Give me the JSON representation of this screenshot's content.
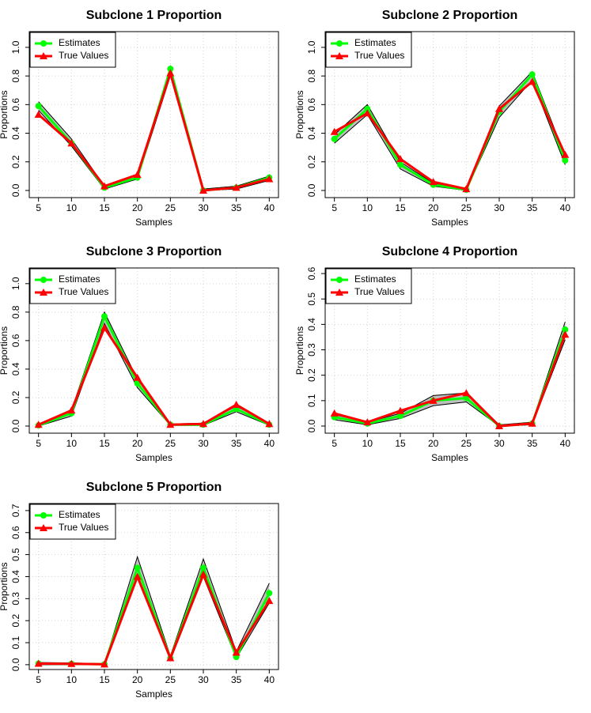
{
  "chart_data": [
    {
      "type": "line",
      "title": "Subclone 1 Proportion",
      "xlabel": "Samples",
      "ylabel": "Proportions",
      "x": [
        5,
        10,
        15,
        20,
        25,
        30,
        35,
        40
      ],
      "xlim": [
        3.6,
        41.4
      ],
      "xticks": [
        5,
        10,
        15,
        20,
        25,
        30,
        35,
        40
      ],
      "ylim": [
        -0.05,
        1.11
      ],
      "yticks": [
        {
          "value": 0,
          "label": "0.0"
        },
        0.2,
        0.4,
        0.6,
        0.8,
        {
          "value": 1,
          "label": "1.0"
        }
      ],
      "grid": true,
      "legend": "topleft",
      "band": {
        "color": "#bebebe",
        "lower": [
          0.56,
          0.31,
          0.01,
          0.08,
          0.8,
          0,
          0.01,
          0.07
        ],
        "upper": [
          0.62,
          0.36,
          0.03,
          0.11,
          0.86,
          0.01,
          0.03,
          0.1
        ]
      },
      "series": [
        {
          "name": "Estimates",
          "color": "#00ff00",
          "marker": "circle",
          "values": [
            0.59,
            0.33,
            0.02,
            0.09,
            0.85,
            0,
            0.02,
            0.09
          ]
        },
        {
          "name": "True Values",
          "color": "#ff0000",
          "marker": "triangle",
          "values": [
            0.53,
            0.33,
            0.03,
            0.11,
            0.82,
            0,
            0.02,
            0.08
          ]
        }
      ]
    },
    {
      "type": "line",
      "title": "Subclone 2 Proportion",
      "xlabel": "Samples",
      "ylabel": "Proportions",
      "x": [
        5,
        10,
        15,
        20,
        25,
        30,
        35,
        40
      ],
      "xlim": [
        3.6,
        41.4
      ],
      "xticks": [
        5,
        10,
        15,
        20,
        25,
        30,
        35,
        40
      ],
      "ylim": [
        -0.05,
        1.11
      ],
      "yticks": [
        {
          "value": 0,
          "label": "0.0"
        },
        0.2,
        0.4,
        0.6,
        0.8,
        {
          "value": 1,
          "label": "1.0"
        }
      ],
      "grid": true,
      "legend": "topleft",
      "band": {
        "color": "#bebebe",
        "lower": [
          0.33,
          0.53,
          0.15,
          0.03,
          0,
          0.51,
          0.77,
          0.18
        ],
        "upper": [
          0.39,
          0.6,
          0.2,
          0.05,
          0.01,
          0.59,
          0.83,
          0.24
        ]
      },
      "series": [
        {
          "name": "Estimates",
          "color": "#00ff00",
          "marker": "circle",
          "values": [
            0.36,
            0.57,
            0.18,
            0.04,
            0.005,
            0.55,
            0.81,
            0.21
          ]
        },
        {
          "name": "True Values",
          "color": "#ff0000",
          "marker": "triangle",
          "values": [
            0.41,
            0.54,
            0.22,
            0.06,
            0.01,
            0.57,
            0.76,
            0.25
          ]
        }
      ]
    },
    {
      "type": "line",
      "title": "Subclone 3 Proportion",
      "xlabel": "Samples",
      "ylabel": "Proportions",
      "x": [
        5,
        10,
        15,
        20,
        25,
        30,
        35,
        40
      ],
      "xlim": [
        3.6,
        41.4
      ],
      "xticks": [
        5,
        10,
        15,
        20,
        25,
        30,
        35,
        40
      ],
      "ylim": [
        -0.05,
        1.11
      ],
      "yticks": [
        {
          "value": 0,
          "label": "0.0"
        },
        0.2,
        0.4,
        0.6,
        0.8,
        {
          "value": 1,
          "label": "1.0"
        }
      ],
      "grid": true,
      "legend": "topleft",
      "band": {
        "color": "#bebebe",
        "lower": [
          0,
          0.07,
          0.72,
          0.27,
          0.005,
          0.005,
          0.1,
          0.005
        ],
        "upper": [
          0.01,
          0.11,
          0.8,
          0.33,
          0.015,
          0.02,
          0.14,
          0.02
        ]
      },
      "series": [
        {
          "name": "Estimates",
          "color": "#00ff00",
          "marker": "circle",
          "values": [
            0.005,
            0.09,
            0.77,
            0.3,
            0.01,
            0.01,
            0.12,
            0.01
          ]
        },
        {
          "name": "True Values",
          "color": "#ff0000",
          "marker": "triangle",
          "values": [
            0.01,
            0.11,
            0.69,
            0.34,
            0.01,
            0.015,
            0.15,
            0.015
          ]
        }
      ]
    },
    {
      "type": "line",
      "title": "Subclone 4 Proportion",
      "xlabel": "Samples",
      "ylabel": "Proportions",
      "x": [
        5,
        10,
        15,
        20,
        25,
        30,
        35,
        40
      ],
      "xlim": [
        3.6,
        41.4
      ],
      "xticks": [
        5,
        10,
        15,
        20,
        25,
        30,
        35,
        40
      ],
      "ylim": [
        -0.028,
        0.622
      ],
      "yticks": [
        {
          "value": 0,
          "label": "0.0"
        },
        0.1,
        0.2,
        0.3,
        0.4,
        0.5,
        0.6
      ],
      "grid": true,
      "legend": "topleft",
      "band": {
        "color": "#bebebe",
        "lower": [
          0.025,
          0.005,
          0.03,
          0.08,
          0.095,
          0,
          0.005,
          0.34
        ],
        "upper": [
          0.045,
          0.015,
          0.05,
          0.12,
          0.13,
          0.005,
          0.015,
          0.41
        ]
      },
      "series": [
        {
          "name": "Estimates",
          "color": "#00ff00",
          "marker": "circle",
          "values": [
            0.035,
            0.01,
            0.04,
            0.1,
            0.11,
            0,
            0.01,
            0.38
          ]
        },
        {
          "name": "True Values",
          "color": "#ff0000",
          "marker": "triangle",
          "values": [
            0.05,
            0.015,
            0.06,
            0.1,
            0.13,
            0,
            0.01,
            0.36
          ]
        }
      ]
    },
    {
      "type": "line",
      "title": "Subclone 5 Proportion",
      "xlabel": "Samples",
      "ylabel": "Proportions",
      "x": [
        5,
        10,
        15,
        20,
        25,
        30,
        35,
        40
      ],
      "xlim": [
        3.6,
        41.4
      ],
      "xticks": [
        5,
        10,
        15,
        20,
        25,
        30,
        35,
        40
      ],
      "ylim": [
        -0.022,
        0.732
      ],
      "yticks": [
        {
          "value": 0,
          "label": "0.0"
        },
        0.1,
        0.2,
        0.3,
        0.4,
        0.5,
        0.6,
        0.7
      ],
      "grid": true,
      "legend": "topleft",
      "band": {
        "color": "#bebebe",
        "lower": [
          0,
          0,
          0,
          0.4,
          0.02,
          0.4,
          0.03,
          0.28
        ],
        "upper": [
          0.01,
          0.008,
          0.004,
          0.49,
          0.04,
          0.48,
          0.06,
          0.37
        ]
      },
      "series": [
        {
          "name": "Estimates",
          "color": "#00ff00",
          "marker": "circle",
          "values": [
            0.005,
            0.004,
            0.002,
            0.44,
            0.03,
            0.44,
            0.035,
            0.325
          ]
        },
        {
          "name": "True Values",
          "color": "#ff0000",
          "marker": "triangle",
          "values": [
            0.005,
            0.004,
            0.002,
            0.4,
            0.03,
            0.41,
            0.055,
            0.29
          ]
        }
      ]
    }
  ]
}
